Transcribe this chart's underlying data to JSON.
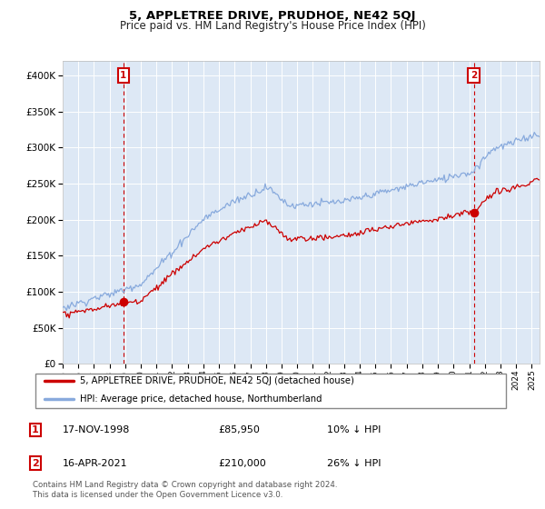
{
  "title": "5, APPLETREE DRIVE, PRUDHOE, NE42 5QJ",
  "subtitle": "Price paid vs. HM Land Registry's House Price Index (HPI)",
  "hpi_label": "HPI: Average price, detached house, Northumberland",
  "price_label": "5, APPLETREE DRIVE, PRUDHOE, NE42 5QJ (detached house)",
  "legend_text_1": "17-NOV-1998",
  "legend_price_1": "£85,950",
  "legend_hpi_1": "10% ↓ HPI",
  "legend_text_2": "16-APR-2021",
  "legend_price_2": "£210,000",
  "legend_hpi_2": "26% ↓ HPI",
  "footer": "Contains HM Land Registry data © Crown copyright and database right 2024.\nThis data is licensed under the Open Government Licence v3.0.",
  "ylim": [
    0,
    420000
  ],
  "yticks": [
    0,
    50000,
    100000,
    150000,
    200000,
    250000,
    300000,
    350000,
    400000
  ],
  "price_color": "#cc0000",
  "hpi_color": "#88aadd",
  "bg_color": "#dde8f5",
  "vline_color": "#cc0000",
  "box_color": "#cc0000",
  "sale1_x": 1998.88,
  "sale1_y": 85950,
  "sale2_x": 2021.29,
  "sale2_y": 210000,
  "xmin": 1995.0,
  "xmax": 2025.5
}
